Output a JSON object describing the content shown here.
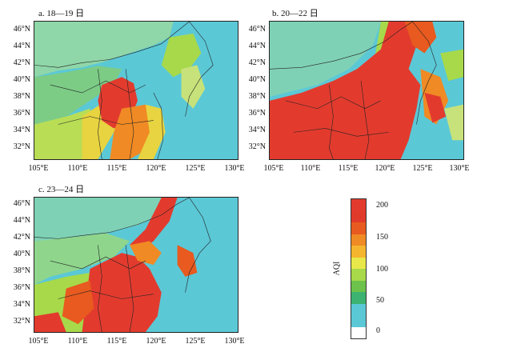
{
  "panels": [
    {
      "id": "a",
      "title": "a. 18—19 日",
      "lat_labels": [
        "46°N",
        "44°N",
        "42°N",
        "40°N",
        "38°N",
        "36°N",
        "34°N",
        "32°N"
      ],
      "lon_labels": [
        "105°E",
        "110°E",
        "115°E",
        "120°E",
        "125°E",
        "130°E"
      ]
    },
    {
      "id": "b",
      "title": "b. 20—22 日",
      "lat_labels": [
        "46°N",
        "44°N",
        "42°N",
        "40°N",
        "38°N",
        "36°N",
        "34°N",
        "32°N"
      ],
      "lon_labels": [
        "105°E",
        "110°E",
        "115°E",
        "120°E",
        "125°E",
        "130°E"
      ]
    },
    {
      "id": "c",
      "title": "c. 23—24 日",
      "lat_labels": [
        "46°N",
        "44°N",
        "42°N",
        "40°N",
        "38°N",
        "36°N",
        "34°N",
        "32°N"
      ],
      "lon_labels": [
        "105°E",
        "110°E",
        "115°E",
        "120°E",
        "125°E",
        "130°E"
      ]
    }
  ],
  "colorbar": {
    "label": "AQI",
    "ticks": [
      "200",
      "150",
      "100",
      "50",
      "0"
    ],
    "colors": [
      "#ffffff",
      "#5bc8d6",
      "#5bc8d6",
      "#3cb371",
      "#6cc24a",
      "#a7d94a",
      "#e8e84a",
      "#f5b52e",
      "#f08a24",
      "#e85a1f",
      "#e03a2a",
      "#e23b2e"
    ]
  }
}
